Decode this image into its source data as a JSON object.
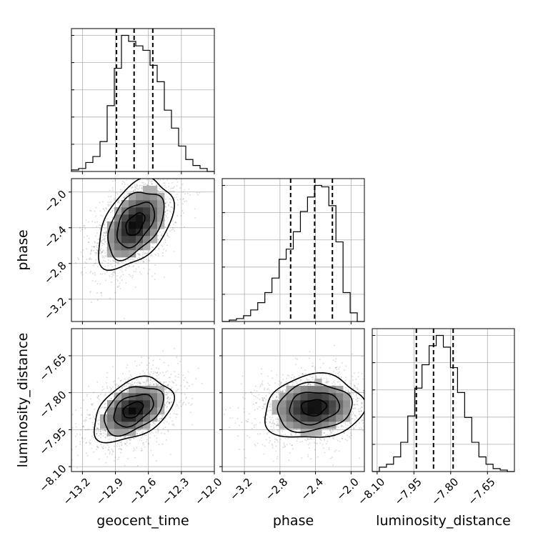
{
  "chart_data": {
    "type": "corner",
    "parameters": [
      "geocent_time",
      "phase",
      "luminosity_distance"
    ],
    "axis_labels": {
      "geocent_time": "geocent_time",
      "phase": "phase",
      "luminosity_distance": "luminosity_distance"
    },
    "ranges": {
      "geocent_time": [
        -13.3,
        -12.0
      ],
      "phase": [
        -3.45,
        -1.85
      ],
      "luminosity_distance": [
        -8.12,
        -7.54
      ]
    },
    "ticks": {
      "geocent_time": [
        -13.2,
        -12.9,
        -12.6,
        -12.3,
        -12.0
      ],
      "phase": [
        -3.2,
        -2.8,
        -2.4,
        -2.0
      ],
      "luminosity_distance": [
        -8.1,
        -7.95,
        -7.8,
        -7.65
      ]
    },
    "tick_labels": {
      "geocent_time": [
        "−13.2",
        "−12.9",
        "−12.6",
        "−12.3",
        "−12.0"
      ],
      "phase": [
        "−3.2",
        "−2.8",
        "−2.4",
        "−2.0"
      ],
      "luminosity_distance": [
        "−8.10",
        "−7.95",
        "−7.80",
        "−7.65"
      ]
    },
    "histograms": {
      "geocent_time": {
        "edges": [
          -13.3,
          -13.235,
          -13.17,
          -13.105,
          -13.04,
          -12.975,
          -12.91,
          -12.845,
          -12.78,
          -12.715,
          -12.65,
          -12.585,
          -12.52,
          -12.455,
          -12.39,
          -12.325,
          -12.26,
          -12.195,
          -12.13,
          -12.065,
          -12.0
        ],
        "counts": [
          0.01,
          0.02,
          0.06,
          0.1,
          0.2,
          0.44,
          0.69,
          0.91,
          0.87,
          0.84,
          0.81,
          0.71,
          0.6,
          0.41,
          0.29,
          0.17,
          0.08,
          0.04,
          0.02,
          0.0
        ],
        "quantiles": [
          -12.89,
          -12.73,
          -12.56
        ]
      },
      "phase": {
        "edges": [
          -3.45,
          -3.37,
          -3.29,
          -3.21,
          -3.13,
          -3.05,
          -2.97,
          -2.89,
          -2.81,
          -2.73,
          -2.65,
          -2.57,
          -2.49,
          -2.41,
          -2.33,
          -2.25,
          -2.17,
          -2.09,
          -2.01,
          -1.93,
          -1.85
        ],
        "counts": [
          0.0,
          0.01,
          0.02,
          0.04,
          0.08,
          0.13,
          0.2,
          0.3,
          0.43,
          0.5,
          0.62,
          0.76,
          0.86,
          0.94,
          0.93,
          0.8,
          0.55,
          0.2,
          0.06,
          0.0
        ],
        "quantiles": [
          -2.68,
          -2.41,
          -2.21
        ]
      },
      "luminosity_distance": {
        "edges": [
          -8.12,
          -8.091,
          -8.062,
          -8.033,
          -8.004,
          -7.975,
          -7.946,
          -7.917,
          -7.888,
          -7.859,
          -7.83,
          -7.801,
          -7.772,
          -7.743,
          -7.714,
          -7.685,
          -7.656,
          -7.627,
          -7.598,
          -7.569,
          -7.54
        ],
        "counts": [
          0.0,
          0.03,
          0.05,
          0.1,
          0.2,
          0.38,
          0.57,
          0.73,
          0.86,
          0.93,
          0.85,
          0.71,
          0.54,
          0.37,
          0.2,
          0.1,
          0.05,
          0.02,
          0.01,
          0.0
        ],
        "quantiles": [
          -7.94,
          -7.87,
          -7.79
        ]
      }
    },
    "pairs": [
      {
        "x": "geocent_time",
        "y": "phase",
        "center": [
          -12.72,
          -2.36
        ],
        "sigma": [
          0.17,
          0.25
        ],
        "rho": 0.45,
        "contour_levels": [
          0.5,
          1.0,
          1.5,
          2.0
        ]
      },
      {
        "x": "geocent_time",
        "y": "luminosity_distance",
        "center": [
          -12.74,
          -7.87
        ],
        "sigma": [
          0.18,
          0.065
        ],
        "rho": 0.42,
        "contour_levels": [
          0.5,
          1.0,
          1.5,
          2.0
        ]
      },
      {
        "x": "phase",
        "y": "luminosity_distance",
        "center": [
          -2.42,
          -7.86
        ],
        "sigma": [
          0.28,
          0.065
        ],
        "rho": 0.12,
        "contour_levels": [
          0.5,
          1.0,
          1.5,
          2.0
        ]
      }
    ],
    "grid": true,
    "scatter_color": "#000000",
    "line_color": "#000000",
    "quantile_style": "dashed"
  }
}
